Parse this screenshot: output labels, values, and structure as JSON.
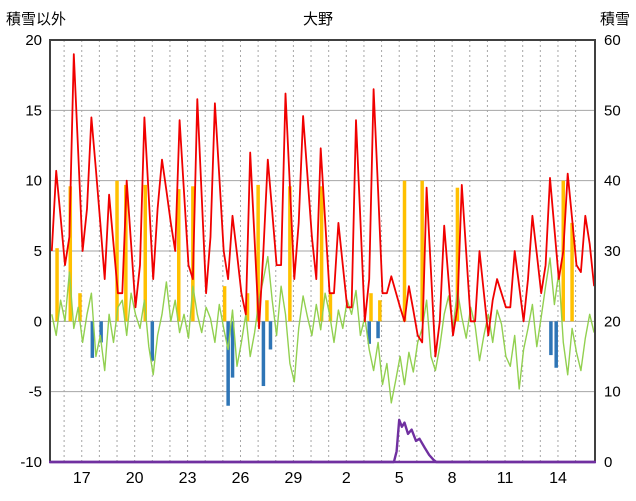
{
  "header": {
    "left_axis_title": "積雪以外",
    "title": "大野",
    "right_axis_title": "積雪"
  },
  "chart_data": {
    "type": "line",
    "title": "大野",
    "left_axis": {
      "label": "積雪以外",
      "min": -10,
      "max": 20,
      "ticks": [
        20,
        15,
        10,
        5,
        0,
        -5,
        -10
      ]
    },
    "right_axis": {
      "label": "積雪",
      "min": 0,
      "max": 60,
      "ticks": [
        60,
        50,
        40,
        30,
        20,
        10,
        0
      ]
    },
    "x_axis": {
      "domain": [
        15.2,
        46.1
      ],
      "tick_positions": [
        17,
        20,
        23,
        26,
        29,
        32,
        35,
        38,
        41,
        44
      ],
      "tick_labels": [
        "17",
        "20",
        "23",
        "26",
        "29",
        "2",
        "5",
        "8",
        "11",
        "14"
      ],
      "day_gridline_start": 16,
      "day_gridline_end": 45,
      "grid": "daily-dashed"
    },
    "colors": {
      "red_line": "#f00000",
      "green_line": "#92d050",
      "orange_bars": "#ffc000",
      "blue_bars": "#2e75b6",
      "purple_line": "#7030a0",
      "grid": "#a6a6a6",
      "frame": "#404040",
      "text": "#000000"
    },
    "series": [
      {
        "name": "orange-bars",
        "type": "bar",
        "axis": "left",
        "color": "#ffc000",
        "points": [
          [
            15.6,
            5.2
          ],
          [
            16.35,
            9.6
          ],
          [
            16.9,
            2.0
          ],
          [
            19.0,
            10.0
          ],
          [
            19.5,
            9.7
          ],
          [
            20.6,
            9.7
          ],
          [
            22.5,
            9.4
          ],
          [
            23.3,
            9.6
          ],
          [
            25.1,
            2.5
          ],
          [
            26.4,
            2.0
          ],
          [
            27.0,
            9.7
          ],
          [
            27.5,
            1.5
          ],
          [
            28.8,
            9.6
          ],
          [
            30.6,
            9.6
          ],
          [
            31.1,
            2.0
          ],
          [
            33.4,
            2.0
          ],
          [
            33.9,
            1.5
          ],
          [
            35.3,
            10.0
          ],
          [
            36.3,
            10.0
          ],
          [
            38.3,
            9.5
          ],
          [
            44.3,
            10.0
          ],
          [
            44.8,
            7.0
          ]
        ]
      },
      {
        "name": "blue-bars",
        "type": "bar",
        "axis": "left",
        "color": "#2e75b6",
        "points": [
          [
            17.6,
            -2.6
          ],
          [
            18.1,
            -1.5
          ],
          [
            21.0,
            -2.8
          ],
          [
            25.3,
            -6.0
          ],
          [
            25.55,
            -4.0
          ],
          [
            27.3,
            -4.6
          ],
          [
            27.7,
            -2.0
          ],
          [
            33.3,
            -1.6
          ],
          [
            33.8,
            -1.2
          ],
          [
            43.6,
            -2.4
          ],
          [
            43.9,
            -3.3
          ]
        ]
      },
      {
        "name": "green-line",
        "type": "line",
        "axis": "left",
        "color": "#92d050",
        "width": 1.4,
        "x0": 15.3,
        "dx": 0.25,
        "y": [
          0.5,
          -1,
          1.5,
          0,
          3.5,
          -0.5,
          1,
          -1.5,
          0.5,
          2,
          -2.5,
          -1,
          -3.5,
          0.5,
          -1.5,
          1,
          1.5,
          -1,
          2,
          0.5,
          -0.5,
          1.5,
          -1.8,
          -3.8,
          -1,
          0.5,
          2.8,
          0,
          1.5,
          -0.8,
          0.5,
          -1.2,
          2.5,
          0.5,
          -0.8,
          1,
          0.2,
          -1.5,
          1.2,
          -0.5,
          -2,
          0.8,
          -3.2,
          -1.5,
          0.5,
          -2.5,
          -0.8,
          1.5,
          3,
          4.6,
          1.5,
          -1,
          2.5,
          0.5,
          -3,
          -4.3,
          -0.5,
          1.8,
          0.3,
          -1,
          1.2,
          -0.6,
          2,
          0.5,
          -1.5,
          0.8,
          -0.5,
          1.5,
          0.5,
          2.2,
          -1,
          0.3,
          -2,
          -3.5,
          -1.5,
          -4.5,
          -3,
          -5.8,
          -4.2,
          -2.5,
          -4.5,
          -2.2,
          -3.6,
          -1.5,
          -0.5,
          1.5,
          -2.5,
          -3.5,
          -1.8,
          0.5,
          1.8,
          -0.5,
          2.2,
          0.3,
          -1.2,
          1,
          -0.3,
          -2.8,
          -1,
          0.5,
          -1.5,
          0.8,
          -0.2,
          -2.5,
          -3.2,
          -1,
          -4.8,
          -2,
          -0.5,
          1.2,
          -1.8,
          0.3,
          2.5,
          4.5,
          1.2,
          3.5,
          -1.5,
          -3.8,
          -0.5,
          -2.2,
          -3.5,
          -1.2,
          0.5,
          -0.8
        ]
      },
      {
        "name": "red-line",
        "type": "line",
        "axis": "left",
        "color": "#f00000",
        "width": 1.8,
        "x0": 15.3,
        "dx": 0.25,
        "y": [
          5,
          10.7,
          7.4,
          4,
          6,
          19,
          12,
          5,
          8,
          14.5,
          10.8,
          7,
          3,
          9,
          5.5,
          2,
          2,
          10,
          5.5,
          1,
          4,
          14.5,
          8.8,
          3,
          8,
          11.5,
          9.3,
          7,
          5,
          14.3,
          9.2,
          4,
          3,
          15.8,
          8.9,
          2,
          6,
          15.5,
          10.3,
          5,
          3,
          7.5,
          4.8,
          2,
          0.5,
          12,
          5.8,
          -0.5,
          5,
          11.5,
          7.8,
          4,
          4,
          16.2,
          9.6,
          3,
          7,
          14.6,
          10.3,
          6,
          3,
          12.3,
          7.2,
          2,
          2,
          7,
          4,
          1,
          1,
          14.3,
          7.2,
          0,
          3,
          16.5,
          9.3,
          2,
          2,
          3.2,
          2.1,
          1,
          0,
          2.5,
          0.8,
          -1,
          -1.5,
          9.5,
          3.5,
          -2.5,
          0,
          6.8,
          2.9,
          -1,
          1,
          9.7,
          4.9,
          0,
          0,
          5,
          2,
          -1,
          1.5,
          3,
          2,
          1,
          1,
          5,
          2.5,
          0,
          3,
          7.5,
          4.8,
          2,
          4,
          10.2,
          6.6,
          3,
          5,
          10.5,
          7.3,
          4,
          3.5,
          7.5,
          5.5,
          2.5
        ]
      },
      {
        "name": "purple-line",
        "type": "line",
        "axis": "right",
        "color": "#7030a0",
        "width": 2.4,
        "points": [
          [
            15.2,
            0
          ],
          [
            34.7,
            0
          ],
          [
            34.85,
            1.5
          ],
          [
            35.0,
            6.0
          ],
          [
            35.15,
            5.0
          ],
          [
            35.3,
            5.6
          ],
          [
            35.5,
            4.0
          ],
          [
            35.7,
            4.6
          ],
          [
            35.95,
            3.0
          ],
          [
            36.15,
            3.3
          ],
          [
            36.45,
            2.0
          ],
          [
            36.7,
            1.0
          ],
          [
            36.95,
            0.3
          ],
          [
            37.1,
            0
          ],
          [
            46.1,
            0
          ]
        ]
      }
    ]
  }
}
